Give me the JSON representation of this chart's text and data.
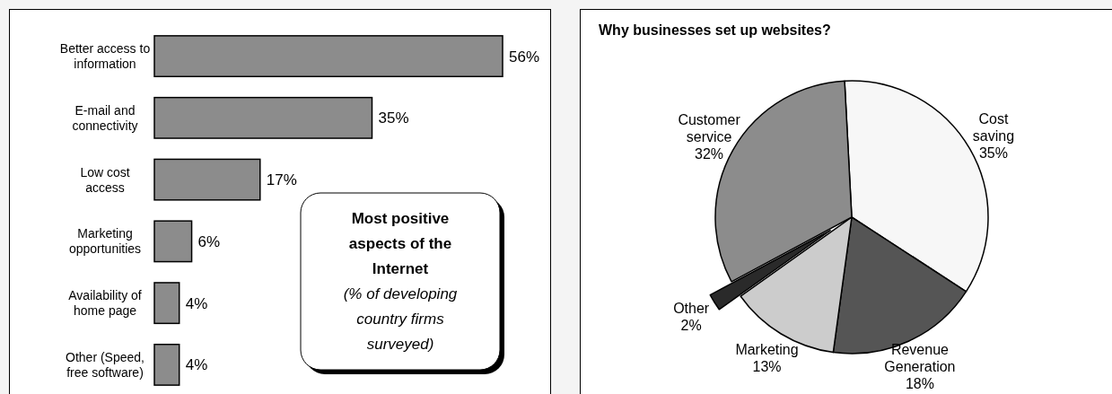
{
  "chart_data": [
    {
      "type": "bar",
      "orientation": "horizontal",
      "title": "Most positive aspects of the Internet",
      "subtitle": "(% of developing country firms surveyed)",
      "categories": [
        "Better access to information",
        "E-mail and connectivity",
        "Low cost access",
        "Marketing opportunities",
        "Availability of home page",
        "Other (Speed, free software)"
      ],
      "values": [
        56,
        35,
        17,
        6,
        4,
        4
      ],
      "color": "#8c8c8c",
      "value_labels": [
        "56%",
        "35%",
        "17%",
        "6%",
        "4%",
        "4%"
      ]
    },
    {
      "type": "pie",
      "title": "Why businesses set up websites?",
      "categories": [
        "Cost saving",
        "Revenue Generation",
        "Marketing",
        "Other",
        "Customer service"
      ],
      "values": [
        35,
        18,
        13,
        2,
        32
      ],
      "colors": [
        "#f7f7f7",
        "#555555",
        "#cccccc",
        "#2a2a2a",
        "#8c8c8c"
      ],
      "value_labels": [
        "35%",
        "18%",
        "13%",
        "2%",
        "32%"
      ]
    }
  ]
}
